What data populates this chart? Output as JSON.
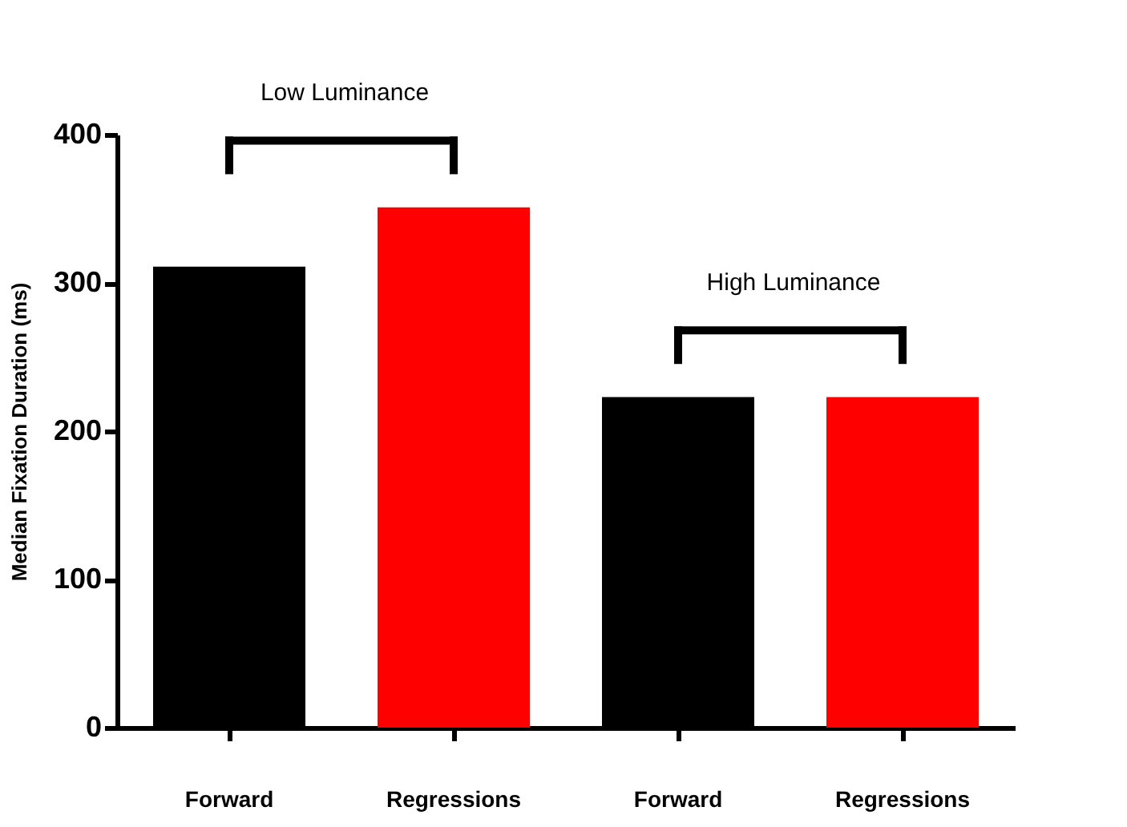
{
  "chart_data": {
    "type": "bar",
    "ylabel": "Median Fixation Duration (ms)",
    "categories": [
      "Forward",
      "Regressions",
      "Forward",
      "Regressions"
    ],
    "values": [
      311,
      351,
      223,
      223
    ],
    "colors": [
      "#000000",
      "#ff0000",
      "#000000",
      "#ff0000"
    ],
    "ylim": [
      0,
      400
    ],
    "yticks": [
      0,
      100,
      200,
      300,
      400
    ],
    "annotations": [
      "Low Luminance",
      "High Luminance"
    ]
  }
}
